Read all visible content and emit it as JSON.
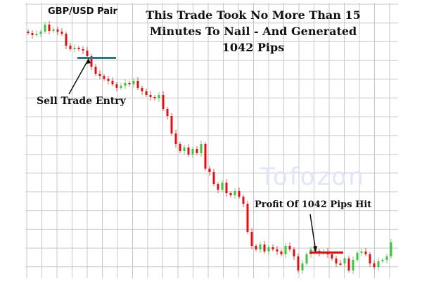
{
  "chart_data": {
    "type": "candlestick",
    "title": "This Trade Took No More Than 15 Minutes To Nail - And Generated 1042 Pips",
    "title_lines": [
      "This Trade Took No More Than 15",
      "Minutes To Nail - And Generated",
      "1042 Pips"
    ],
    "pair_label": "GBP/USD Pair",
    "annotations": {
      "entry": "Sell Trade Entry",
      "profit": "Profit Of 1042 Pips Hit"
    },
    "watermark": "Tofozon",
    "grid": true,
    "colors": {
      "up": "#3ec43e",
      "down": "#e01010",
      "entry_line": "#2a7a80",
      "target_line": "#e01010",
      "grid": "#c8c8c8"
    },
    "closes": [
      353,
      350,
      352,
      355,
      365,
      356,
      358,
      355,
      352,
      335,
      330,
      332,
      330,
      328,
      320,
      305,
      295,
      292,
      288,
      285,
      280,
      275,
      278,
      282,
      280,
      285,
      275,
      270,
      265,
      262,
      260,
      265,
      245,
      235,
      210,
      195,
      185,
      190,
      180,
      188,
      182,
      195,
      160,
      155,
      138,
      130,
      140,
      125,
      122,
      128,
      120,
      110,
      70,
      50,
      45,
      52,
      42,
      48,
      45,
      42,
      38,
      50,
      45,
      35,
      15,
      25,
      38,
      45,
      43,
      40,
      42,
      38,
      32,
      25,
      25,
      32,
      15,
      30,
      40,
      42,
      38,
      25,
      20,
      28,
      30,
      35,
      55
    ],
    "entry_candle": 14,
    "target_candle": 68
  }
}
